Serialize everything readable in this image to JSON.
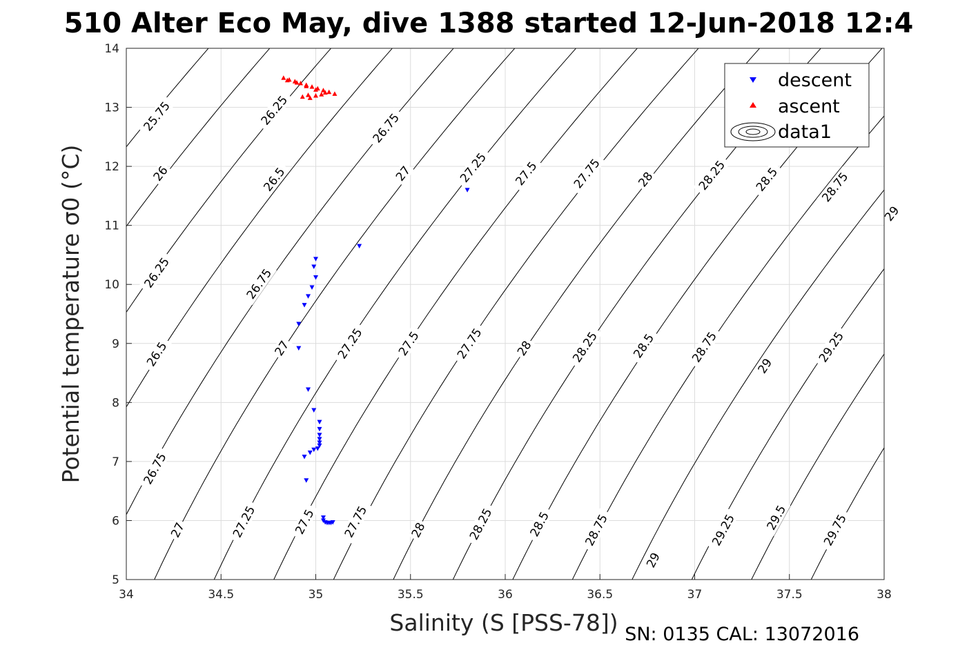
{
  "chart_data": {
    "type": "scatter",
    "title": "510 Alter Eco May, dive 1388 started 12-Jun-2018 12:4",
    "xlabel": "Salinity (S [PSS-78])",
    "ylabel": "Potential temperature σ0 (°C)",
    "xlim": [
      34,
      38
    ],
    "ylim": [
      5,
      14
    ],
    "xticks": [
      "34",
      "34.5",
      "35",
      "35.5",
      "36",
      "36.5",
      "37",
      "37.5",
      "38"
    ],
    "yticks": [
      "5",
      "6",
      "7",
      "8",
      "9",
      "10",
      "11",
      "12",
      "13",
      "14"
    ],
    "grid": true,
    "legend_position": "top-right",
    "series": [
      {
        "name": "descent",
        "marker": "triangle-down",
        "color": "#0000ff",
        "points": [
          [
            35.8,
            11.6
          ],
          [
            35.23,
            10.65
          ],
          [
            35.0,
            10.43
          ],
          [
            34.99,
            10.3
          ],
          [
            35.0,
            10.12
          ],
          [
            34.98,
            9.95
          ],
          [
            34.96,
            9.8
          ],
          [
            34.94,
            9.65
          ],
          [
            34.91,
            9.33
          ],
          [
            34.91,
            8.92
          ],
          [
            34.96,
            8.22
          ],
          [
            34.99,
            7.87
          ],
          [
            35.02,
            7.67
          ],
          [
            35.02,
            7.55
          ],
          [
            35.02,
            7.45
          ],
          [
            35.02,
            7.38
          ],
          [
            35.02,
            7.32
          ],
          [
            35.02,
            7.27
          ],
          [
            35.01,
            7.22
          ],
          [
            34.99,
            7.2
          ],
          [
            34.97,
            7.15
          ],
          [
            34.94,
            7.08
          ],
          [
            34.95,
            6.68
          ],
          [
            35.04,
            6.05
          ],
          [
            35.04,
            6.0
          ],
          [
            35.05,
            5.97
          ],
          [
            35.06,
            5.96
          ],
          [
            35.07,
            5.96
          ],
          [
            35.08,
            5.96
          ],
          [
            35.09,
            5.97
          ]
        ]
      },
      {
        "name": "ascent",
        "marker": "triangle-up",
        "color": "#ff0000",
        "points": [
          [
            34.83,
            13.5
          ],
          [
            34.86,
            13.47
          ],
          [
            34.89,
            13.44
          ],
          [
            34.92,
            13.41
          ],
          [
            34.95,
            13.38
          ],
          [
            34.98,
            13.35
          ],
          [
            35.01,
            13.32
          ],
          [
            35.04,
            13.29
          ],
          [
            35.07,
            13.26
          ],
          [
            35.1,
            13.23
          ],
          [
            34.85,
            13.46
          ],
          [
            34.9,
            13.42
          ],
          [
            34.95,
            13.36
          ],
          [
            35.0,
            13.3
          ],
          [
            35.05,
            13.25
          ],
          [
            34.93,
            13.18
          ],
          [
            34.96,
            13.21
          ],
          [
            34.97,
            13.16
          ],
          [
            35.0,
            13.2
          ],
          [
            35.03,
            13.22
          ]
        ]
      }
    ],
    "contours": {
      "name": "data1",
      "levels": [
        "25.75",
        "26",
        "26.25",
        "26.5",
        "26.75",
        "27",
        "27.25",
        "27.5",
        "27.75",
        "28",
        "28.25",
        "28.5",
        "28.75",
        "29",
        "29.25",
        "29.5",
        "29.75"
      ],
      "labels": [
        [
          "25.75",
          34.16,
          12.85
        ],
        [
          "26",
          34.18,
          11.88
        ],
        [
          "26.25",
          34.16,
          10.2
        ],
        [
          "26.5",
          34.16,
          8.82
        ],
        [
          "26.75",
          34.15,
          6.88
        ],
        [
          "27",
          34.27,
          5.84
        ],
        [
          "26.25",
          34.78,
          12.95
        ],
        [
          "26.5",
          34.78,
          11.78
        ],
        [
          "26.75",
          34.7,
          10.01
        ],
        [
          "27",
          34.82,
          8.92
        ],
        [
          "27.25",
          34.62,
          5.98
        ],
        [
          "27.5",
          34.94,
          5.98
        ],
        [
          "26.75",
          35.37,
          12.65
        ],
        [
          "27",
          35.46,
          11.88
        ],
        [
          "27.25",
          35.18,
          9.0
        ],
        [
          "27.5",
          35.49,
          9.0
        ],
        [
          "27.75",
          35.21,
          5.98
        ],
        [
          "27.25",
          35.83,
          11.98
        ],
        [
          "27.5",
          36.11,
          11.88
        ],
        [
          "27.75",
          36.43,
          11.88
        ],
        [
          "27.75",
          35.81,
          9.0
        ],
        [
          "28",
          35.54,
          5.84
        ],
        [
          "28",
          36.74,
          11.78
        ],
        [
          "28.25",
          37.09,
          11.85
        ],
        [
          "28.5",
          37.38,
          11.78
        ],
        [
          "28.75",
          37.74,
          11.65
        ],
        [
          "29",
          38.04,
          11.2
        ],
        [
          "28",
          36.1,
          8.92
        ],
        [
          "28.25",
          36.42,
          8.94
        ],
        [
          "28.5",
          36.73,
          8.96
        ],
        [
          "28.75",
          37.05,
          8.94
        ],
        [
          "29",
          37.37,
          8.62
        ],
        [
          "29.25",
          37.72,
          8.94
        ],
        [
          "28.25",
          35.87,
          5.94
        ],
        [
          "28.5",
          36.18,
          5.94
        ],
        [
          "28.75",
          36.48,
          5.84
        ],
        [
          "29",
          36.78,
          5.33
        ],
        [
          "29.25",
          37.15,
          5.84
        ],
        [
          "29.5",
          37.43,
          6.05
        ],
        [
          "29.75",
          37.74,
          5.84
        ]
      ]
    },
    "footer": "SN: 0135  CAL: 13072016"
  }
}
